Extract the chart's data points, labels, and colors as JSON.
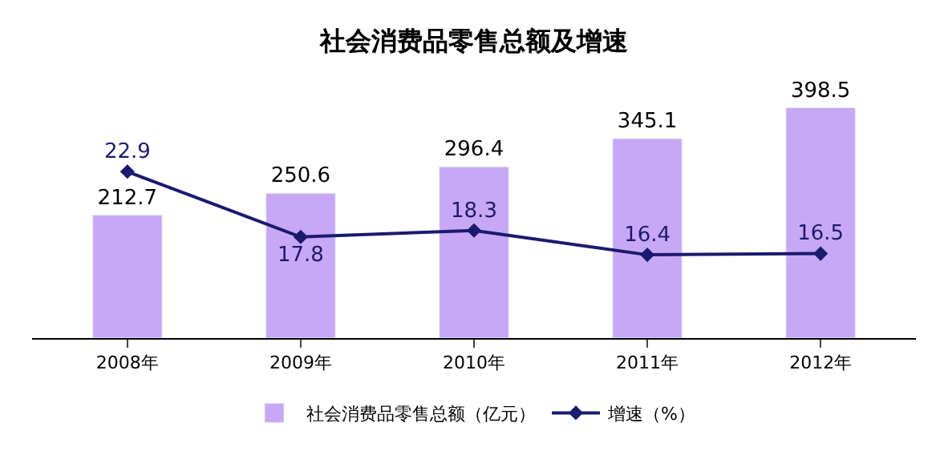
{
  "chart_data": {
    "type": "bar",
    "title": "社会消费品零售总额及增速",
    "categories": [
      "2008年",
      "2009年",
      "2010年",
      "2011年",
      "2012年"
    ],
    "series": [
      {
        "name": "社会消费品零售总额（亿元）",
        "color": "#c8a8f5",
        "values": [
          212.7,
          250.6,
          296.4,
          345.1,
          398.5
        ]
      },
      {
        "name": "增速（%）",
        "type": "line",
        "axis": "y2",
        "color": "#1a1a6e",
        "marker": "diamond",
        "values": [
          22.9,
          17.8,
          18.3,
          16.4,
          16.5
        ]
      }
    ],
    "data_labels": true,
    "legend": "bottom",
    "tick_labels": "x"
  }
}
